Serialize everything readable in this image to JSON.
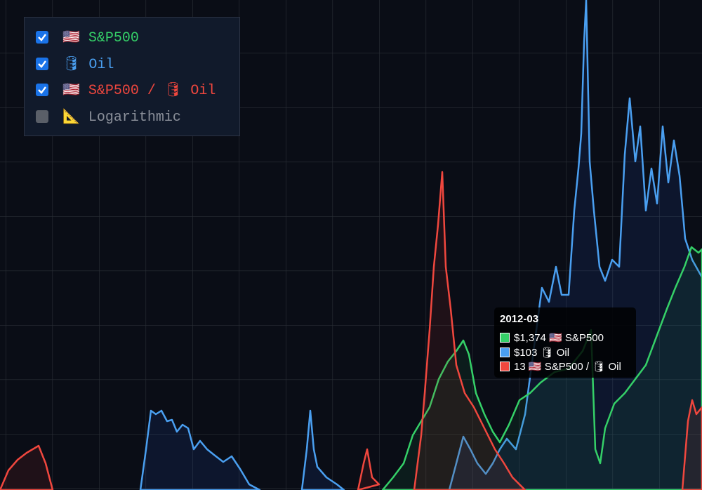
{
  "legend": {
    "items": [
      {
        "label": "🇺🇸 S&P500",
        "checked": true,
        "color": "#35d068"
      },
      {
        "label": "🛢 Oil",
        "checked": true,
        "color": "#4a9ff0"
      },
      {
        "label": "🇺🇸 S&P500 / 🛢 Oil",
        "checked": true,
        "color": "#f0473e"
      },
      {
        "label": "📐 Logarithmic",
        "checked": false,
        "color": "#8a8f99"
      }
    ]
  },
  "tooltip": {
    "title": "2012-03",
    "rows": [
      {
        "text": "$1,374 🇺🇸 S&P500",
        "color": "#35d068"
      },
      {
        "text": "$103 🛢 Oil",
        "color": "#4a9ff0"
      },
      {
        "text": "13 🇺🇸 S&P500 / 🛢 Oil",
        "color": "#f0473e"
      }
    ]
  }
}
